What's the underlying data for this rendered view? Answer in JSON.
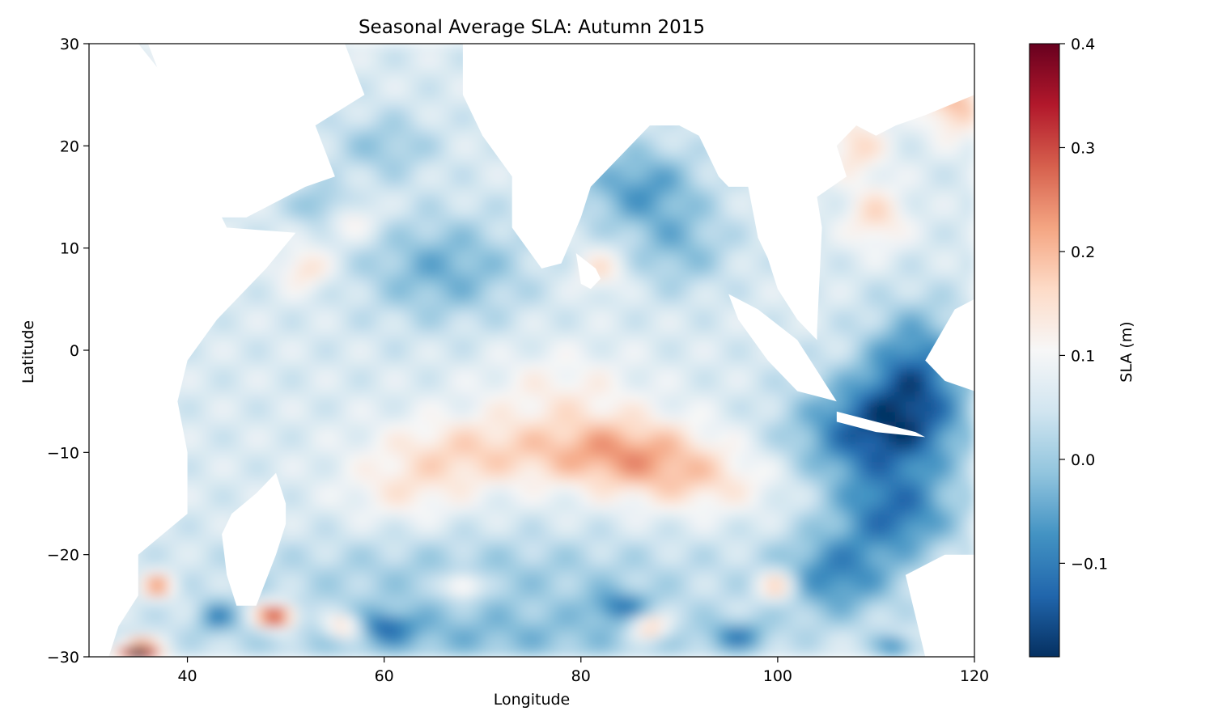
{
  "chart_data": {
    "type": "heatmap",
    "title": "Seasonal Average SLA: Autumn 2015",
    "xlabel": "Longitude",
    "ylabel": "Latitude",
    "xlim": [
      30,
      120
    ],
    "ylim": [
      -30,
      30
    ],
    "x_ticks": [
      40,
      60,
      80,
      100,
      120
    ],
    "y_ticks": [
      30,
      20,
      10,
      0,
      -10,
      -20,
      -30
    ],
    "x_tick_labels": [
      "40",
      "60",
      "80",
      "100",
      "120"
    ],
    "y_tick_labels": [
      "30",
      "20",
      "10",
      "0",
      "−10",
      "−20",
      "−30"
    ],
    "colorbar": {
      "label": "SLA (m)",
      "colormap": "RdBu_r",
      "range": [
        -0.19,
        0.4
      ],
      "ticks": [
        0.4,
        0.3,
        0.2,
        0.1,
        0.0,
        -0.1
      ],
      "tick_labels": [
        "0.4",
        "0.3",
        "0.2",
        "0.1",
        "0.0",
        "−0.1"
      ]
    },
    "land_color": "#ffffff",
    "features": [
      {
        "description": "positive anomaly band",
        "lon_range": [
          58,
          100
        ],
        "lat_range": [
          -16,
          -6
        ],
        "sla_peak": 0.28,
        "peak_at": [
          84,
          -10
        ]
      },
      {
        "description": "negative anomaly band",
        "lon_range": [
          100,
          120
        ],
        "lat_range": [
          -20,
          5
        ],
        "sla_min": -0.12
      },
      {
        "description": "Arabian Sea eddies",
        "lon_range": [
          50,
          60
        ],
        "lat_range": [
          8,
          16
        ],
        "sla_range": [
          -0.1,
          0.2
        ]
      },
      {
        "description": "southern eddy field",
        "lon_range": [
          32,
          112
        ],
        "lat_range": [
          -30,
          -20
        ],
        "sla_range": [
          -0.12,
          0.4
        ]
      }
    ]
  }
}
